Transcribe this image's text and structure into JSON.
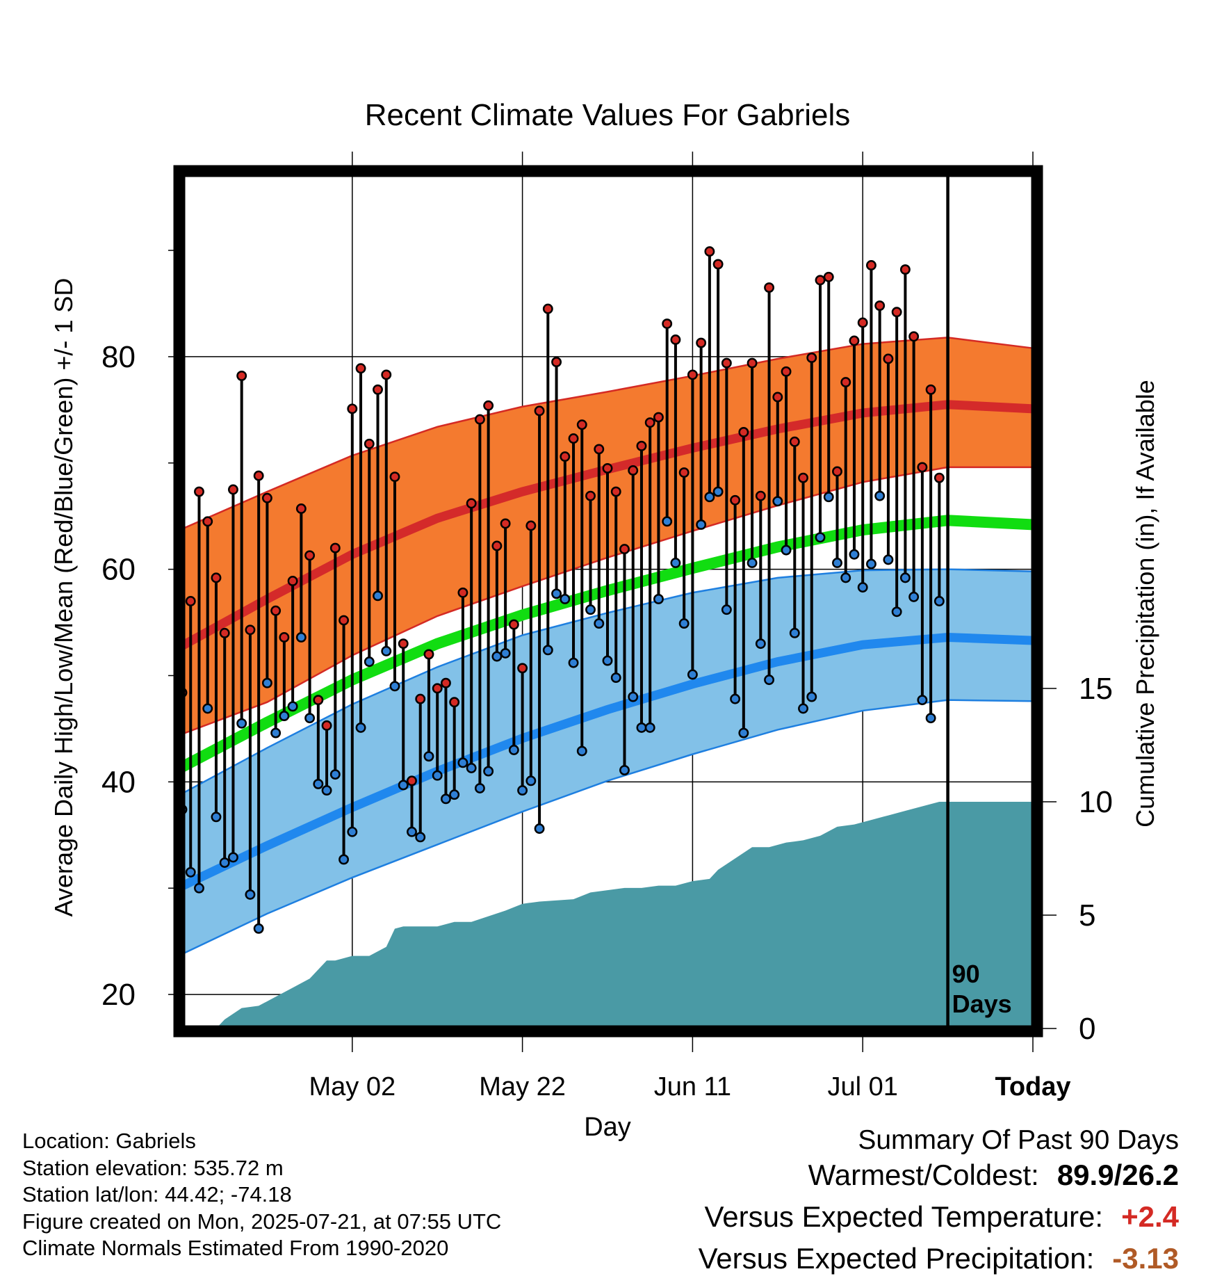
{
  "chart_data": {
    "type": "line",
    "title": "Recent Climate Values For Gabriels",
    "xlabel": "Day",
    "ylabel": "Average Daily High/Low/Mean (Red/Blue/Green) +/- 1 SD",
    "y2label": "Cumulative Precipitation (in), If Available",
    "xlim": [
      -10,
      90
    ],
    "ylim": [
      16.8,
      97.2
    ],
    "y_ticks": [
      20,
      40,
      60,
      80
    ],
    "y2lim": [
      0,
      37.7
    ],
    "y2_ticks": [
      0,
      5,
      10,
      15
    ],
    "x_ticks": [
      {
        "x": 10,
        "label": "May 02"
      },
      {
        "x": 30,
        "label": "May 22"
      },
      {
        "x": 50,
        "label": "Jun 11"
      },
      {
        "x": 70,
        "label": "Jul 01"
      },
      {
        "x": 90,
        "label": "Today"
      }
    ],
    "today_marker": {
      "x": 80,
      "label": "90 Days"
    },
    "normals": {
      "x": [
        -10,
        0,
        10,
        20,
        30,
        40,
        50,
        60,
        70,
        80,
        90
      ],
      "high_mean": [
        52.8,
        57.2,
        61.4,
        64.8,
        67.3,
        69.4,
        71.4,
        73.2,
        74.7,
        75.5,
        75.1
      ],
      "high_upper": [
        63.8,
        67.3,
        70.7,
        73.4,
        75.3,
        76.7,
        78.2,
        79.8,
        81.2,
        81.8,
        80.8
      ],
      "high_lower": [
        44.5,
        47.5,
        51.9,
        55.6,
        58.4,
        61.1,
        63.6,
        66.0,
        68.2,
        69.6,
        69.6
      ],
      "mean": [
        41.4,
        45.6,
        49.6,
        53.0,
        55.7,
        58.0,
        60.1,
        62.1,
        63.7,
        64.6,
        64.2
      ],
      "low_mean": [
        30.2,
        34.0,
        37.6,
        41.0,
        44.1,
        46.8,
        49.2,
        51.3,
        52.9,
        53.6,
        53.3
      ],
      "low_upper": [
        38.9,
        43.2,
        47.3,
        50.8,
        53.8,
        55.9,
        57.8,
        59.2,
        59.9,
        60.0,
        59.8
      ],
      "low_lower": [
        23.8,
        27.6,
        31.0,
        34.1,
        37.2,
        40.1,
        42.6,
        44.9,
        46.7,
        47.7,
        47.6
      ]
    },
    "series": [
      {
        "name": "High",
        "color": "#d42a24",
        "x": [
          -10,
          -9,
          -8,
          -7,
          -6,
          -5,
          -4,
          -3,
          -2,
          -1,
          0,
          1,
          2,
          3,
          4,
          5,
          6,
          7,
          8,
          9,
          10,
          11,
          12,
          13,
          14,
          15,
          16,
          17,
          18,
          19,
          20,
          21,
          22,
          23,
          24,
          25,
          26,
          27,
          28,
          29,
          30,
          31,
          32,
          33,
          34,
          35,
          36,
          37,
          38,
          39,
          40,
          41,
          42,
          43,
          44,
          45,
          46,
          47,
          48,
          49,
          50,
          51,
          52,
          53,
          54,
          55,
          56,
          57,
          58,
          59,
          60,
          61,
          62,
          63,
          64,
          65,
          66,
          67,
          68,
          69,
          70,
          71,
          72,
          73,
          74,
          75,
          76,
          77,
          78,
          79
        ],
        "values": [
          48.4,
          57.0,
          67.3,
          64.5,
          59.2,
          54.0,
          67.5,
          78.2,
          54.3,
          68.8,
          66.7,
          56.1,
          53.6,
          58.9,
          65.7,
          61.3,
          47.7,
          45.3,
          62.0,
          55.2,
          75.1,
          78.9,
          71.8,
          76.9,
          78.3,
          68.7,
          53.0,
          40.1,
          47.8,
          52.0,
          48.8,
          49.3,
          47.5,
          57.8,
          66.2,
          74.1,
          75.4,
          62.2,
          64.3,
          54.8,
          50.7,
          64.1,
          74.9,
          84.5,
          79.5,
          70.6,
          72.3,
          73.6,
          66.9,
          71.3,
          69.5,
          67.3,
          61.9,
          69.3,
          71.6,
          73.8,
          74.3,
          83.1,
          81.6,
          69.1,
          78.3,
          81.3,
          89.9,
          88.7,
          79.4,
          66.5,
          72.9,
          79.4,
          66.9,
          86.5,
          76.2,
          78.6,
          72.0,
          68.6,
          79.9,
          87.2,
          87.5,
          69.2,
          77.6,
          81.5,
          83.2,
          88.6,
          84.8,
          79.8,
          84.2,
          88.2,
          81.9,
          69.6,
          76.9,
          68.6
        ]
      },
      {
        "name": "Low",
        "color": "#2f7fd4",
        "x": [
          -10,
          -9,
          -8,
          -7,
          -6,
          -5,
          -4,
          -3,
          -2,
          -1,
          0,
          1,
          2,
          3,
          4,
          5,
          6,
          7,
          8,
          9,
          10,
          11,
          12,
          13,
          14,
          15,
          16,
          17,
          18,
          19,
          20,
          21,
          22,
          23,
          24,
          25,
          26,
          27,
          28,
          29,
          30,
          31,
          32,
          33,
          34,
          35,
          36,
          37,
          38,
          39,
          40,
          41,
          42,
          43,
          44,
          45,
          46,
          47,
          48,
          49,
          50,
          51,
          52,
          53,
          54,
          55,
          56,
          57,
          58,
          59,
          60,
          61,
          62,
          63,
          64,
          65,
          66,
          67,
          68,
          69,
          70,
          71,
          72,
          73,
          74,
          75,
          76,
          77,
          78,
          79
        ],
        "values": [
          37.4,
          31.5,
          30.0,
          46.9,
          36.7,
          32.4,
          32.9,
          45.5,
          29.4,
          26.2,
          49.3,
          44.6,
          46.2,
          47.1,
          53.6,
          46.0,
          39.8,
          39.2,
          40.7,
          32.7,
          35.3,
          45.1,
          51.3,
          57.5,
          52.3,
          49.0,
          39.7,
          35.3,
          34.8,
          42.4,
          40.6,
          38.4,
          38.8,
          41.8,
          41.3,
          39.4,
          41.0,
          51.8,
          52.1,
          43.0,
          39.2,
          40.1,
          35.6,
          52.4,
          57.7,
          57.2,
          51.2,
          42.9,
          56.2,
          54.9,
          51.4,
          49.8,
          41.1,
          48.0,
          45.1,
          45.1,
          57.2,
          64.5,
          60.6,
          54.9,
          50.1,
          64.2,
          66.8,
          67.3,
          56.2,
          47.8,
          44.6,
          60.6,
          53.0,
          49.6,
          66.4,
          61.8,
          54.0,
          46.9,
          48.0,
          63.0,
          66.8,
          60.6,
          59.2,
          61.4,
          58.3,
          60.5,
          66.9,
          60.9,
          56.0,
          59.2,
          57.4,
          47.7,
          46.0,
          57.0
        ]
      }
    ],
    "precip": {
      "name": "Cumulative Precipitation",
      "color": "#4a9aa5",
      "x": [
        -10,
        -6,
        -5,
        -3,
        -1,
        1,
        3,
        5,
        7,
        8,
        10,
        12,
        14,
        15,
        16,
        20,
        22,
        24,
        28,
        30,
        32,
        36,
        38,
        40,
        42,
        44,
        46,
        48,
        50,
        52,
        53,
        55,
        57,
        59,
        61,
        63,
        65,
        67,
        69,
        71,
        73,
        75,
        77,
        79,
        90
      ],
      "values": [
        0,
        0,
        0.4,
        0.9,
        1.0,
        1.4,
        1.8,
        2.2,
        3.0,
        3.0,
        3.2,
        3.2,
        3.6,
        4.4,
        4.5,
        4.5,
        4.7,
        4.7,
        5.2,
        5.5,
        5.6,
        5.7,
        6.0,
        6.1,
        6.2,
        6.2,
        6.3,
        6.3,
        6.5,
        6.6,
        7.0,
        7.5,
        8.0,
        8.0,
        8.2,
        8.3,
        8.5,
        8.9,
        9.0,
        9.2,
        9.4,
        9.6,
        9.8,
        10.0,
        10.0
      ]
    }
  },
  "footer": {
    "location": "Location: Gabriels",
    "elevation": "Station elevation: 535.72 m",
    "latlon": "Station lat/lon: 44.42; -74.18",
    "created": "Figure created on Mon, 2025-07-21, at 07:55 UTC",
    "normals_source": "Climate Normals Estimated From 1990-2020"
  },
  "summary": {
    "heading": "Summary Of Past 90 Days",
    "warm_cold_label": "Warmest/Coldest:",
    "warm_cold_value": "89.9/26.2",
    "temp_label": "Versus Expected Temperature:",
    "temp_value": "+2.4",
    "temp_color": "#d42a24",
    "precip_label": "Versus Expected Precipitation:",
    "precip_value": "-3.13",
    "precip_color": "#b05a26"
  }
}
